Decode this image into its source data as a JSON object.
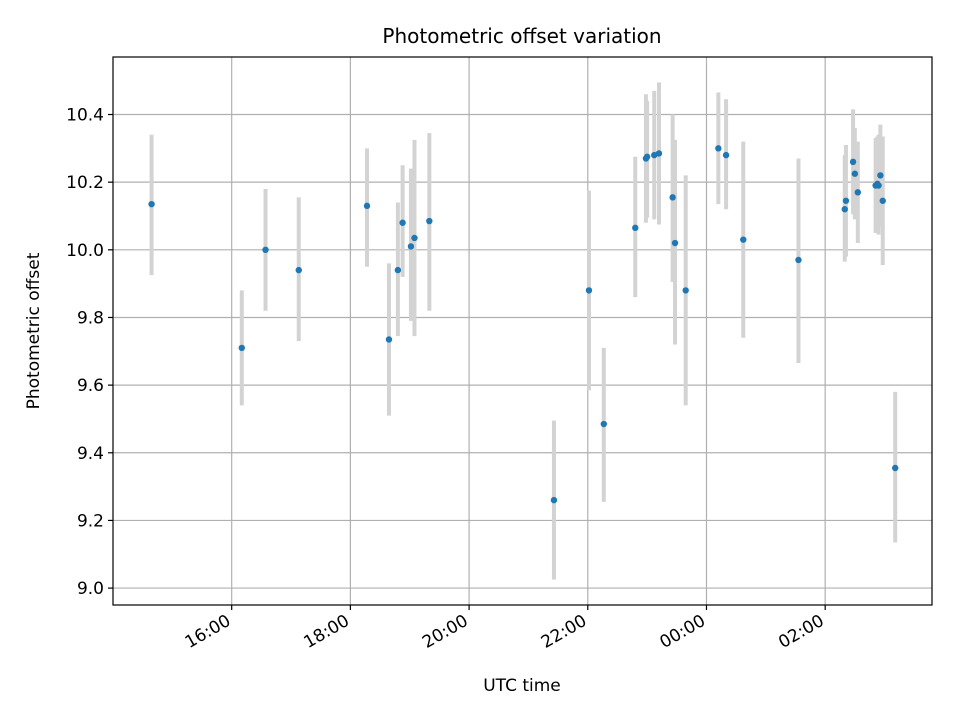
{
  "chart_data": {
    "type": "scatter",
    "title": "Photometric offset variation",
    "xlabel": "UTC time",
    "ylabel": "Photometric offset",
    "grid": true,
    "legend": "none",
    "x_unit": "hours (UTC, continuing past midnight)",
    "xlim": [
      14.0,
      27.8
    ],
    "ylim": [
      8.95,
      10.57
    ],
    "x_ticks": [
      {
        "value": 16,
        "label": "16:00"
      },
      {
        "value": 18,
        "label": "18:00"
      },
      {
        "value": 20,
        "label": "20:00"
      },
      {
        "value": 22,
        "label": "22:00"
      },
      {
        "value": 24,
        "label": "00:00"
      },
      {
        "value": 26,
        "label": "02:00"
      }
    ],
    "y_ticks": [
      {
        "value": 9.0,
        "label": "9.0"
      },
      {
        "value": 9.2,
        "label": "9.2"
      },
      {
        "value": 9.4,
        "label": "9.4"
      },
      {
        "value": 9.6,
        "label": "9.6"
      },
      {
        "value": 9.8,
        "label": "9.8"
      },
      {
        "value": 10.0,
        "label": "10.0"
      },
      {
        "value": 10.2,
        "label": "10.2"
      },
      {
        "value": 10.4,
        "label": "10.4"
      }
    ],
    "colors": {
      "point": "#1f77b4",
      "errorbar": "#d3d3d3",
      "grid": "#b0b0b0"
    },
    "points": [
      {
        "x": 14.65,
        "y": 10.135,
        "lo": 9.925,
        "hi": 10.34
      },
      {
        "x": 16.17,
        "y": 9.71,
        "lo": 9.54,
        "hi": 9.88
      },
      {
        "x": 16.57,
        "y": 10.0,
        "lo": 9.82,
        "hi": 10.18
      },
      {
        "x": 17.13,
        "y": 9.94,
        "lo": 9.73,
        "hi": 10.155
      },
      {
        "x": 18.28,
        "y": 10.13,
        "lo": 9.95,
        "hi": 10.3
      },
      {
        "x": 18.65,
        "y": 9.735,
        "lo": 9.51,
        "hi": 9.96
      },
      {
        "x": 18.8,
        "y": 9.94,
        "lo": 9.745,
        "hi": 10.14
      },
      {
        "x": 18.88,
        "y": 10.08,
        "lo": 9.92,
        "hi": 10.25
      },
      {
        "x": 19.02,
        "y": 10.01,
        "lo": 9.79,
        "hi": 10.24
      },
      {
        "x": 19.08,
        "y": 10.035,
        "lo": 9.745,
        "hi": 10.325
      },
      {
        "x": 19.33,
        "y": 10.085,
        "lo": 9.82,
        "hi": 10.345
      },
      {
        "x": 21.43,
        "y": 9.26,
        "lo": 9.025,
        "hi": 9.495
      },
      {
        "x": 22.02,
        "y": 9.88,
        "lo": 9.585,
        "hi": 10.175
      },
      {
        "x": 22.27,
        "y": 9.485,
        "lo": 9.255,
        "hi": 9.71
      },
      {
        "x": 22.8,
        "y": 10.065,
        "lo": 9.86,
        "hi": 10.275
      },
      {
        "x": 22.98,
        "y": 10.27,
        "lo": 10.08,
        "hi": 10.46
      },
      {
        "x": 23.0,
        "y": 10.275,
        "lo": 10.095,
        "hi": 10.44
      },
      {
        "x": 23.12,
        "y": 10.28,
        "lo": 10.09,
        "hi": 10.47
      },
      {
        "x": 23.2,
        "y": 10.285,
        "lo": 10.075,
        "hi": 10.495
      },
      {
        "x": 23.43,
        "y": 10.155,
        "lo": 9.905,
        "hi": 10.4
      },
      {
        "x": 23.47,
        "y": 10.02,
        "lo": 9.72,
        "hi": 10.325
      },
      {
        "x": 23.65,
        "y": 9.88,
        "lo": 9.54,
        "hi": 10.22
      },
      {
        "x": 24.2,
        "y": 10.3,
        "lo": 10.135,
        "hi": 10.465
      },
      {
        "x": 24.33,
        "y": 10.28,
        "lo": 10.12,
        "hi": 10.445
      },
      {
        "x": 24.62,
        "y": 10.03,
        "lo": 9.74,
        "hi": 10.32
      },
      {
        "x": 25.55,
        "y": 9.97,
        "lo": 9.665,
        "hi": 10.27
      },
      {
        "x": 26.33,
        "y": 10.12,
        "lo": 9.965,
        "hi": 10.28
      },
      {
        "x": 26.35,
        "y": 10.145,
        "lo": 9.98,
        "hi": 10.31
      },
      {
        "x": 26.47,
        "y": 10.26,
        "lo": 10.105,
        "hi": 10.415
      },
      {
        "x": 26.5,
        "y": 10.225,
        "lo": 10.09,
        "hi": 10.36
      },
      {
        "x": 26.55,
        "y": 10.17,
        "lo": 10.02,
        "hi": 10.32
      },
      {
        "x": 26.85,
        "y": 10.19,
        "lo": 10.05,
        "hi": 10.33
      },
      {
        "x": 26.88,
        "y": 10.195,
        "lo": 10.055,
        "hi": 10.335
      },
      {
        "x": 26.9,
        "y": 10.19,
        "lo": 10.045,
        "hi": 10.34
      },
      {
        "x": 26.93,
        "y": 10.22,
        "lo": 10.07,
        "hi": 10.37
      },
      {
        "x": 26.97,
        "y": 10.145,
        "lo": 9.955,
        "hi": 10.335
      },
      {
        "x": 27.18,
        "y": 9.355,
        "lo": 9.135,
        "hi": 9.58
      }
    ]
  }
}
